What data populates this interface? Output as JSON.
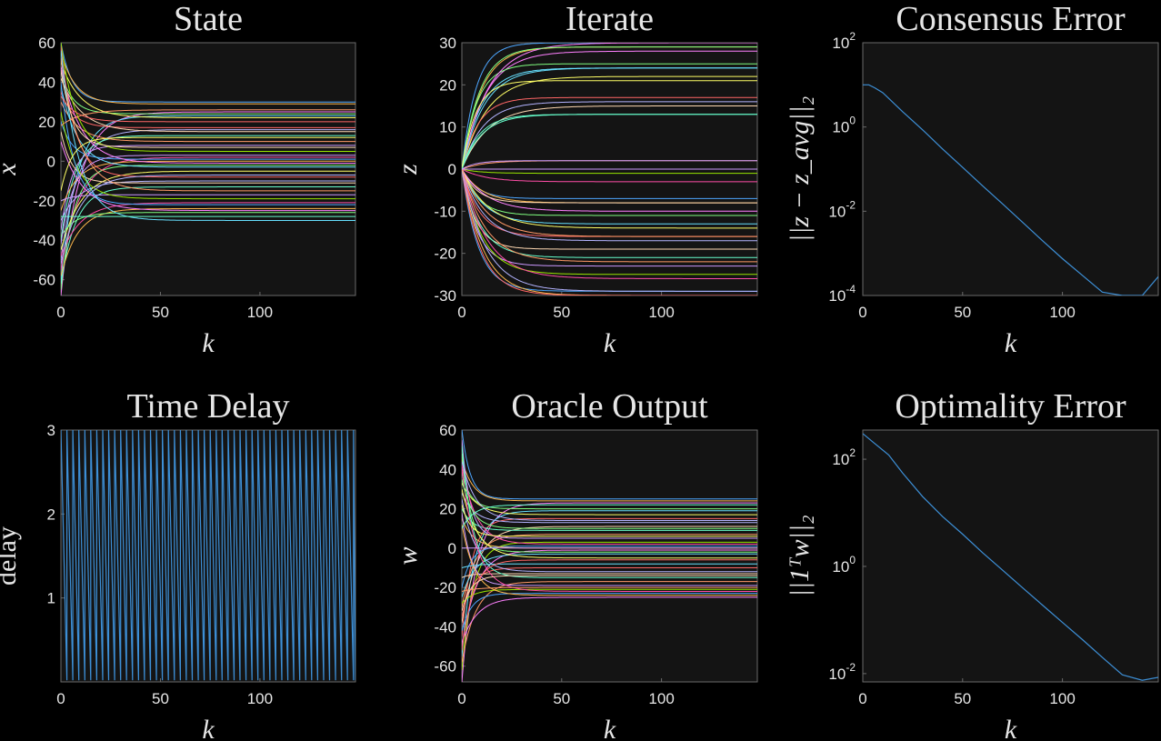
{
  "colors": {
    "background": "#000000",
    "axes_bg": "#141414",
    "text": "#e6e6e6",
    "single_series": "#3d8fd6",
    "palette": [
      "#4da6ff",
      "#ffb84d",
      "#ff80ff",
      "#80ff80",
      "#66e0ff",
      "#ffff66",
      "#ff6666",
      "#b3b3ff",
      "#ffd9b3",
      "#66ffcc",
      "#ff9966",
      "#cc99ff",
      "#99e600",
      "#ff4da6"
    ]
  },
  "chart_data": [
    {
      "type": "line",
      "title": "State",
      "xlabel": "k",
      "ylabel": "x",
      "xlim": [
        0,
        148
      ],
      "ylim": [
        -68,
        60
      ],
      "xticks": [
        0,
        50,
        100
      ],
      "xtick_labels": [
        "0",
        "50",
        "100"
      ],
      "yticks": [
        60,
        40,
        20,
        0,
        -20,
        -40,
        -60
      ],
      "ytick_labels": [
        "60",
        "40",
        "20",
        "0",
        "-20",
        "-40",
        "-60"
      ],
      "grid": false,
      "series_count": 40,
      "series_description_values": {
        "steady_values": [
          30,
          29,
          25,
          24,
          23,
          22,
          17,
          16,
          15,
          13,
          10,
          8,
          5,
          2,
          1,
          0,
          -1,
          -2,
          -3,
          -5,
          -8,
          -10,
          -11,
          -13,
          -15,
          -17,
          -19,
          -21,
          -22,
          -24,
          -25,
          -26,
          -30,
          12,
          20,
          -7,
          7,
          -28,
          26,
          3
        ],
        "initial_values": [
          60,
          55,
          -68,
          45,
          -60,
          50,
          35,
          -50,
          42,
          -40,
          30,
          -35,
          60,
          -55,
          20,
          -25,
          48,
          -65,
          38,
          -45,
          58,
          -30,
          15,
          -62,
          52,
          -20,
          25,
          -48,
          40,
          -58,
          10,
          -38,
          56,
          -15,
          33,
          -52,
          46,
          -28,
          18,
          -42
        ],
        "time_constant": 8
      }
    },
    {
      "type": "line",
      "title": "Iterate",
      "xlabel": "k",
      "ylabel": "z",
      "xlim": [
        0,
        148
      ],
      "ylim": [
        -30,
        30
      ],
      "xticks": [
        0,
        50,
        100
      ],
      "xtick_labels": [
        "0",
        "50",
        "100"
      ],
      "yticks": [
        30,
        20,
        10,
        0,
        -10,
        -20,
        -30
      ],
      "ytick_labels": [
        "30",
        "20",
        "10",
        "0",
        "-10",
        "-20",
        "-30"
      ],
      "grid": false,
      "series_count": 40,
      "series_description_values": {
        "steady_values": [
          30,
          29,
          28,
          25,
          24,
          22,
          17,
          16,
          15,
          13,
          2,
          2,
          -1,
          -3,
          -7,
          -8,
          -10,
          -11,
          -13,
          -14,
          -16,
          -17,
          -19,
          -21,
          -22,
          -23,
          -25,
          -26,
          -29,
          -30,
          30,
          29,
          24,
          21,
          -30,
          -29,
          -8,
          13,
          -16,
          0
        ],
        "initial_values": [
          0
        ],
        "time_constant": 10
      }
    },
    {
      "type": "line",
      "title": "Consensus Error",
      "xlabel": "k",
      "ylabel": "||z − z_avg||₂",
      "yscale": "log",
      "xlim": [
        0,
        148
      ],
      "ylim": [
        0.0001,
        100
      ],
      "xticks": [
        0,
        50,
        100
      ],
      "xtick_labels": [
        "0",
        "50",
        "100"
      ],
      "yticks": [
        100,
        1,
        0.01,
        0.0001
      ],
      "ytick_base": [
        "10",
        "10",
        "10",
        "10"
      ],
      "ytick_exponent": [
        "2",
        "0",
        "-2",
        "-4"
      ],
      "grid": false,
      "series": [
        {
          "x": [
            0,
            3,
            6,
            10,
            20,
            30,
            40,
            50,
            60,
            70,
            80,
            90,
            100,
            110,
            120,
            130,
            140,
            148
          ],
          "y": [
            10,
            10,
            8.5,
            6.5,
            2.3,
            0.85,
            0.3,
            0.11,
            0.04,
            0.015,
            0.0055,
            0.002,
            0.00075,
            0.0003,
            0.00012,
            6e-05,
            3e-05,
            0.00028
          ]
        }
      ]
    },
    {
      "type": "line",
      "title": "Time Delay",
      "xlabel": "k",
      "ylabel": "delay",
      "xlim": [
        0,
        148
      ],
      "ylim": [
        0,
        3
      ],
      "xticks": [
        0,
        50,
        100
      ],
      "xtick_labels": [
        "0",
        "50",
        "100"
      ],
      "yticks": [
        3,
        2,
        1
      ],
      "ytick_labels": [
        "3",
        "2",
        "1"
      ],
      "grid": false,
      "series": [
        {
          "pattern": "sawtooth",
          "x_start": 0,
          "x_end": 148,
          "period": 3,
          "min": 0,
          "max": 3
        }
      ]
    },
    {
      "type": "line",
      "title": "Oracle Output",
      "xlabel": "k",
      "ylabel": "w",
      "xlim": [
        0,
        148
      ],
      "ylim": [
        -68,
        60
      ],
      "xticks": [
        0,
        50,
        100
      ],
      "xtick_labels": [
        "0",
        "50",
        "100"
      ],
      "yticks": [
        60,
        40,
        20,
        0,
        -20,
        -40,
        -60
      ],
      "ytick_labels": [
        "60",
        "40",
        "20",
        "0",
        "-20",
        "-40",
        "-60"
      ],
      "grid": false,
      "series_count": 40,
      "series_description_values": {
        "steady_values": [
          25,
          24,
          23,
          20,
          19,
          17,
          15,
          13,
          11,
          9,
          7,
          5,
          3,
          2,
          1,
          0,
          -1,
          -2,
          -3,
          -5,
          -10,
          -12,
          -13,
          -15,
          -17,
          -19,
          -21,
          -22,
          -23,
          -24,
          -25,
          10,
          -8,
          6,
          -6,
          14,
          -14,
          22,
          -20,
          0
        ],
        "initial_values": [
          60,
          45,
          -68,
          38,
          -55,
          33,
          -45,
          28,
          -38,
          20,
          -30,
          55,
          -62,
          42,
          -20,
          15,
          -50,
          48,
          -25,
          30,
          -35,
          25,
          -15,
          52,
          -58,
          18,
          -28,
          40,
          -42,
          12,
          -48,
          35,
          -10,
          22,
          -52,
          44,
          -32,
          10,
          -22,
          0
        ],
        "time_constant": 6
      }
    },
    {
      "type": "line",
      "title": "Optimality Error",
      "xlabel": "k",
      "ylabel": "||1ᵀw||₂",
      "yscale": "log",
      "xlim": [
        0,
        148
      ],
      "ylim": [
        0.007,
        350
      ],
      "xticks": [
        0,
        50,
        100
      ],
      "xtick_labels": [
        "0",
        "50",
        "100"
      ],
      "yticks": [
        100,
        1,
        0.01
      ],
      "ytick_base": [
        "10",
        "10",
        "10"
      ],
      "ytick_exponent": [
        "2",
        "0",
        "-2"
      ],
      "grid": false,
      "series": [
        {
          "x": [
            0,
            5,
            13,
            20,
            30,
            40,
            50,
            60,
            70,
            80,
            90,
            100,
            110,
            120,
            130,
            140,
            148
          ],
          "y": [
            300,
            210,
            120,
            55,
            20,
            8.5,
            4,
            1.8,
            0.85,
            0.4,
            0.19,
            0.09,
            0.043,
            0.02,
            0.0095,
            0.0075,
            0.0085
          ]
        }
      ]
    }
  ]
}
